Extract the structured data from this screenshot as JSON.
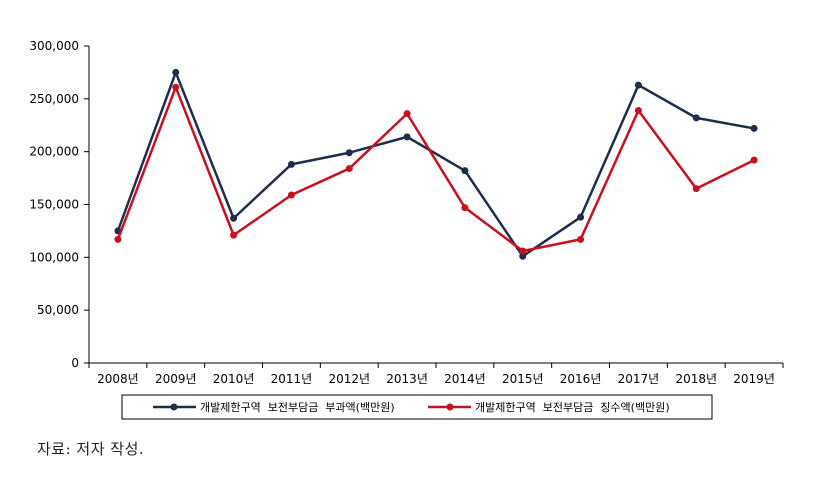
{
  "chart_data": {
    "type": "line",
    "categories": [
      "2008년",
      "2009년",
      "2010년",
      "2011년",
      "2012년",
      "2013년",
      "2014년",
      "2015년",
      "2016년",
      "2017년",
      "2018년",
      "2019년"
    ],
    "ylim": [
      0,
      300000
    ],
    "yticks": [
      "0",
      "50,000",
      "100,000",
      "150,000",
      "200,000",
      "250,000",
      "300,000"
    ],
    "ytick_values": [
      0,
      50000,
      100000,
      150000,
      200000,
      250000,
      300000
    ],
    "grid": false,
    "legend_position": "bottom",
    "series": [
      {
        "name": "개발제한구역  보전부담금  부과액(백만원)",
        "color": "#1f2d4d",
        "values": [
          125000,
          275000,
          137000,
          188000,
          199000,
          214000,
          182000,
          101000,
          138000,
          263000,
          232000,
          222000
        ]
      },
      {
        "name": "개발제한구역  보전부담금  징수액(백만원)",
        "color": "#c8101e",
        "values": [
          117000,
          261000,
          121000,
          159000,
          184000,
          236000,
          147000,
          106000,
          117000,
          239000,
          165000,
          192000
        ]
      }
    ]
  },
  "source_note": "자료: 저자 작성."
}
